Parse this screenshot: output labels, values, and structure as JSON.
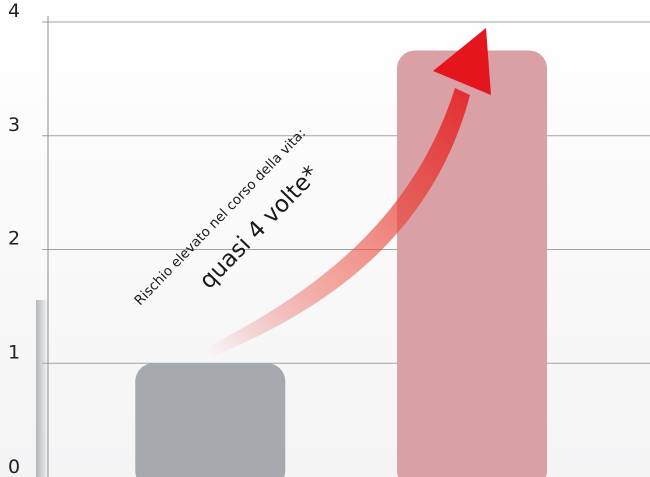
{
  "chart_data": {
    "type": "bar",
    "categories": [
      "",
      ""
    ],
    "values": [
      1,
      3.75
    ],
    "bar_colors": [
      "#a6aaae",
      "#d9a0a5"
    ],
    "ylim": [
      0,
      4
    ],
    "yticks": [
      "0",
      "1",
      "2",
      "3",
      "4"
    ],
    "grid": true,
    "title": "",
    "xlabel": "",
    "ylabel": "",
    "arrow_color": "#e3151d",
    "annotation": {
      "line1": "Rischio elevato nel corso della vita:",
      "line2": "quasi 4 volte*"
    }
  }
}
